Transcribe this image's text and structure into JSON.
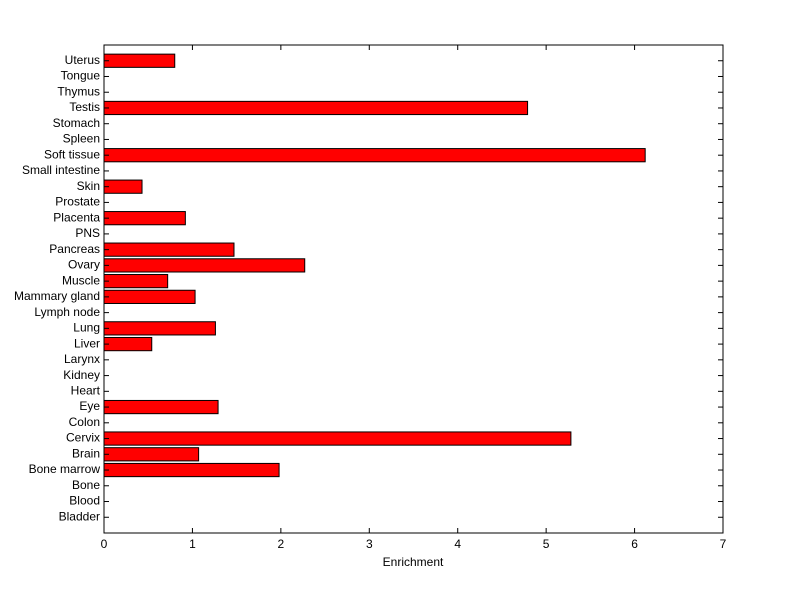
{
  "chart_data": {
    "type": "barh",
    "xlabel": "Enrichment",
    "categories": [
      "Bladder",
      "Blood",
      "Bone",
      "Bone marrow",
      "Brain",
      "Cervix",
      "Colon",
      "Eye",
      "Heart",
      "Kidney",
      "Larynx",
      "Liver",
      "Lung",
      "Lymph node",
      "Mammary gland",
      "Muscle",
      "Ovary",
      "Pancreas",
      "PNS",
      "Placenta",
      "Prostate",
      "Skin",
      "Small intestine",
      "Soft tissue",
      "Spleen",
      "Stomach",
      "Testis",
      "Thymus",
      "Tongue",
      "Uterus"
    ],
    "values": [
      0,
      0,
      0,
      1.98,
      1.07,
      5.28,
      0,
      1.29,
      0,
      0,
      0,
      0.54,
      1.26,
      0,
      1.03,
      0.72,
      2.27,
      1.47,
      0,
      0.92,
      0,
      0.43,
      0,
      6.12,
      0,
      0,
      4.79,
      0,
      0,
      0.8
    ],
    "color": "#ff0000",
    "xlim": [
      0,
      7
    ],
    "xticks": [
      0,
      1,
      2,
      3,
      4,
      5,
      6,
      7
    ]
  }
}
